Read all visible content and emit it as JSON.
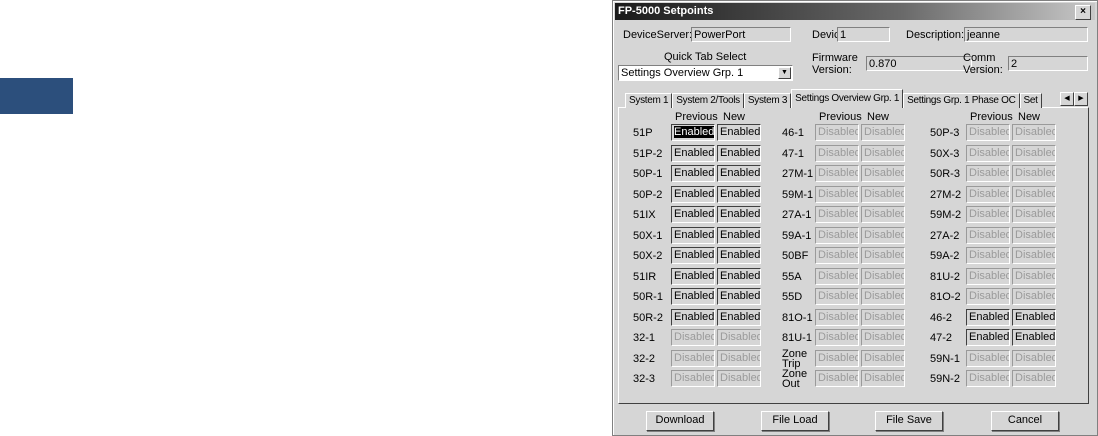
{
  "window": {
    "title": "FP-5000 Setpoints",
    "close": "×"
  },
  "header": {
    "device_server_label": "DeviceServer:",
    "device_server": "PowerPort",
    "device_num_label": "Device#",
    "device_num": "1",
    "description_label": "Description:",
    "description": "jeanne",
    "quick_tab_label": "Quick Tab Select",
    "quick_tab_value": "Settings Overview Grp. 1",
    "firmware_label": "Firmware Version:",
    "firmware": "0.870",
    "comm_label": "Comm Version:",
    "comm": "2"
  },
  "tabs": [
    {
      "label": "System 1"
    },
    {
      "label": "System 2/Tools"
    },
    {
      "label": "System 3"
    },
    {
      "label": "Settings Overview Grp. 1",
      "active": true
    },
    {
      "label": "Settings Grp. 1 Phase OC"
    },
    {
      "label": "Set"
    }
  ],
  "grid": {
    "previous_label": "Previous",
    "new_label": "New",
    "columns": [
      [
        [
          "51P",
          "Enabled",
          "Enabled"
        ],
        [
          "51P-2",
          "Enabled",
          "Enabled"
        ],
        [
          "50P-1",
          "Enabled",
          "Enabled"
        ],
        [
          "50P-2",
          "Enabled",
          "Enabled"
        ],
        [
          "51IX",
          "Enabled",
          "Enabled"
        ],
        [
          "50X-1",
          "Enabled",
          "Enabled"
        ],
        [
          "50X-2",
          "Enabled",
          "Enabled"
        ],
        [
          "51IR",
          "Enabled",
          "Enabled"
        ],
        [
          "50R-1",
          "Enabled",
          "Enabled"
        ],
        [
          "50R-2",
          "Enabled",
          "Enabled"
        ],
        [
          "32-1",
          "Disabled",
          "Disabled"
        ],
        [
          "32-2",
          "Disabled",
          "Disabled"
        ],
        [
          "32-3",
          "Disabled",
          "Disabled"
        ]
      ],
      [
        [
          "46-1",
          "Disabled",
          "Disabled"
        ],
        [
          "47-1",
          "Disabled",
          "Disabled"
        ],
        [
          "27M-1",
          "Disabled",
          "Disabled"
        ],
        [
          "59M-1",
          "Disabled",
          "Disabled"
        ],
        [
          "27A-1",
          "Disabled",
          "Disabled"
        ],
        [
          "59A-1",
          "Disabled",
          "Disabled"
        ],
        [
          "50BF",
          "Disabled",
          "Disabled"
        ],
        [
          "55A",
          "Disabled",
          "Disabled"
        ],
        [
          "55D",
          "Disabled",
          "Disabled"
        ],
        [
          "81O-1",
          "Disabled",
          "Disabled"
        ],
        [
          "81U-1",
          "Disabled",
          "Disabled"
        ],
        [
          "Zone Trip",
          "Disabled",
          "Disabled"
        ],
        [
          "Zone Out",
          "Disabled",
          "Disabled"
        ]
      ],
      [
        [
          "50P-3",
          "Disabled",
          "Disabled"
        ],
        [
          "50X-3",
          "Disabled",
          "Disabled"
        ],
        [
          "50R-3",
          "Disabled",
          "Disabled"
        ],
        [
          "27M-2",
          "Disabled",
          "Disabled"
        ],
        [
          "59M-2",
          "Disabled",
          "Disabled"
        ],
        [
          "27A-2",
          "Disabled",
          "Disabled"
        ],
        [
          "59A-2",
          "Disabled",
          "Disabled"
        ],
        [
          "81U-2",
          "Disabled",
          "Disabled"
        ],
        [
          "81O-2",
          "Disabled",
          "Disabled"
        ],
        [
          "46-2",
          "Enabled",
          "Enabled"
        ],
        [
          "47-2",
          "Enabled",
          "Enabled"
        ],
        [
          "59N-1",
          "Disabled",
          "Disabled"
        ],
        [
          "59N-2",
          "Disabled",
          "Disabled"
        ]
      ]
    ]
  },
  "buttons": {
    "download": "Download",
    "file_load": "File Load",
    "file_save": "File Save",
    "cancel": "Cancel"
  },
  "colors": {
    "left_box": "#2c4f7c"
  }
}
